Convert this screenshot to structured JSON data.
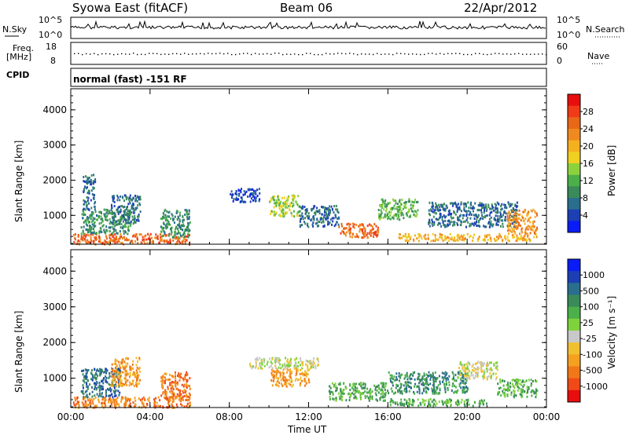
{
  "header": {
    "station": "Syowa East (fitACF)",
    "beam": "Beam 06",
    "date": "22/Apr/2012"
  },
  "status": {
    "nsky_label": "N.Sky",
    "nsky_top": "10^5",
    "nsky_bottom": "10^0",
    "nsearch_top": "10^5",
    "nsearch_bottom": "10^0",
    "nsearch_label": "N.Search",
    "freq_label": "Freq.",
    "freq_unit": "[MHz]",
    "freq_top": "18",
    "freq_bottom": "8",
    "nave_top": "60",
    "nave_bottom": "0",
    "nave_label": "Nave",
    "cpid_label": "CPID",
    "cpid_value": "normal (fast) -151 RF"
  },
  "colors": {
    "power": [
      "#0a1cf5",
      "#1c3fb4",
      "#2a6e8e",
      "#3a8a5a",
      "#4cb04a",
      "#8cd23c",
      "#f0d020",
      "#f5b020",
      "#f08a20",
      "#e86818",
      "#f03a18",
      "#e80e0e"
    ],
    "velocity": [
      "#e80e0e",
      "#f04a18",
      "#f07818",
      "#f5a020",
      "#f0c030",
      "#c8c8c8",
      "#7ed23c",
      "#4cb04a",
      "#3a8a5a",
      "#2a6e8e",
      "#1c3fb4",
      "#0a1cf5"
    ]
  },
  "chart_data": [
    {
      "type": "heatmap",
      "name": "power",
      "ylabel": "Slant Range [km]",
      "xlabel": "Time UT",
      "x_ticks": [
        "00:00",
        "04:00",
        "08:00",
        "12:00",
        "16:00",
        "20:00",
        "00:00"
      ],
      "y_ticks": [
        1000,
        2000,
        3000,
        4000
      ],
      "ylim": [
        180,
        4600
      ],
      "xlim_hours": [
        0,
        24
      ],
      "colorbar_label": "Power [dB]",
      "colorbar_ticks": [
        "28",
        "24",
        "20",
        "16",
        "12",
        "8",
        "4"
      ],
      "regions": [
        {
          "t0": 0.1,
          "t1": 6.0,
          "r0": 200,
          "r1": 500,
          "v": 24
        },
        {
          "t0": 0.5,
          "t1": 3.0,
          "r0": 500,
          "r1": 1200,
          "v": 10
        },
        {
          "t0": 2.0,
          "t1": 3.5,
          "r0": 800,
          "r1": 1600,
          "v": 8
        },
        {
          "t0": 0.6,
          "t1": 1.2,
          "r0": 1200,
          "r1": 2200,
          "v": 6
        },
        {
          "t0": 4.5,
          "t1": 6.0,
          "r0": 400,
          "r1": 1200,
          "v": 10
        },
        {
          "t0": 8.0,
          "t1": 9.5,
          "r0": 1400,
          "r1": 1800,
          "v": 5
        },
        {
          "t0": 10.0,
          "t1": 11.5,
          "r0": 1000,
          "r1": 1600,
          "v": 14
        },
        {
          "t0": 11.5,
          "t1": 13.5,
          "r0": 700,
          "r1": 1300,
          "v": 8
        },
        {
          "t0": 13.5,
          "t1": 15.5,
          "r0": 400,
          "r1": 800,
          "v": 24
        },
        {
          "t0": 15.5,
          "t1": 17.5,
          "r0": 900,
          "r1": 1500,
          "v": 12
        },
        {
          "t0": 16.5,
          "t1": 23.5,
          "r0": 300,
          "r1": 500,
          "v": 20
        },
        {
          "t0": 18.0,
          "t1": 22.5,
          "r0": 700,
          "r1": 1400,
          "v": 8
        },
        {
          "t0": 22.0,
          "t1": 23.5,
          "r0": 500,
          "r1": 1200,
          "v": 22
        }
      ]
    },
    {
      "type": "heatmap",
      "name": "velocity",
      "ylabel": "Slant Range [km]",
      "xlabel": "Time UT",
      "x_ticks": [
        "00:00",
        "04:00",
        "08:00",
        "12:00",
        "16:00",
        "20:00",
        "00:00"
      ],
      "y_ticks": [
        1000,
        2000,
        3000,
        4000
      ],
      "ylim": [
        180,
        4600
      ],
      "xlim_hours": [
        0,
        24
      ],
      "colorbar_label": "Velocity [m s⁻¹]",
      "colorbar_ticks": [
        "1000",
        "500",
        "100",
        "25",
        "-25",
        "-100",
        "-500",
        "-1000"
      ],
      "regions": [
        {
          "t0": 0.1,
          "t1": 6.0,
          "r0": 200,
          "r1": 500,
          "v": -300
        },
        {
          "t0": 0.5,
          "t1": 2.5,
          "r0": 500,
          "r1": 1300,
          "v": 600
        },
        {
          "t0": 2.0,
          "t1": 3.5,
          "r0": 800,
          "r1": 1600,
          "v": -200
        },
        {
          "t0": 4.5,
          "t1": 6.0,
          "r0": 400,
          "r1": 1200,
          "v": -300
        },
        {
          "t0": 9.0,
          "t1": 12.5,
          "r0": 1300,
          "r1": 1600,
          "v": 0
        },
        {
          "t0": 10.0,
          "t1": 12.0,
          "r0": 800,
          "r1": 1300,
          "v": -200
        },
        {
          "t0": 13.0,
          "t1": 16.0,
          "r0": 400,
          "r1": 900,
          "v": 200
        },
        {
          "t0": 16.0,
          "t1": 21.0,
          "r0": 250,
          "r1": 450,
          "v": 150
        },
        {
          "t0": 16.0,
          "t1": 20.0,
          "r0": 600,
          "r1": 1200,
          "v": 400
        },
        {
          "t0": 19.5,
          "t1": 21.5,
          "r0": 1000,
          "r1": 1500,
          "v": 0
        },
        {
          "t0": 21.5,
          "t1": 23.5,
          "r0": 500,
          "r1": 1000,
          "v": 150
        }
      ]
    }
  ]
}
